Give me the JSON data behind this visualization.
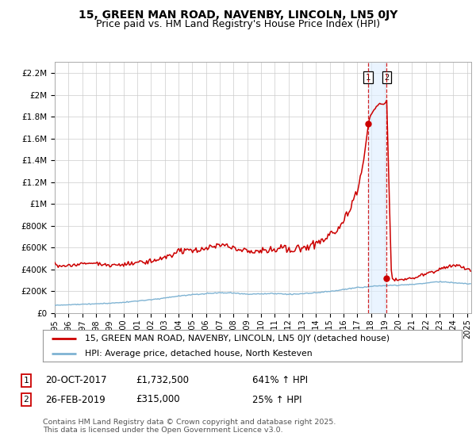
{
  "title": "15, GREEN MAN ROAD, NAVENBY, LINCOLN, LN5 0JY",
  "subtitle": "Price paid vs. HM Land Registry's House Price Index (HPI)",
  "title_fontsize": 10,
  "subtitle_fontsize": 9,
  "ylim": [
    0,
    2300000
  ],
  "yticks": [
    0,
    200000,
    400000,
    600000,
    800000,
    1000000,
    1200000,
    1400000,
    1600000,
    1800000,
    2000000,
    2200000
  ],
  "ytick_labels": [
    "£0",
    "£200K",
    "£400K",
    "£600K",
    "£800K",
    "£1M",
    "£1.2M",
    "£1.4M",
    "£1.6M",
    "£1.8M",
    "£2M",
    "£2.2M"
  ],
  "hpi_color": "#7fb3d3",
  "price_color": "#cc0000",
  "marker_color": "#cc0000",
  "sale1_x": 2017.8,
  "sale1_y": 1732500,
  "sale2_x": 2019.15,
  "sale2_y": 315000,
  "vline1_x": 2017.8,
  "vline2_x": 2019.15,
  "xlim_start": 1995,
  "xlim_end": 2025.3,
  "legend_label_red": "15, GREEN MAN ROAD, NAVENBY, LINCOLN, LN5 0JY (detached house)",
  "legend_label_blue": "HPI: Average price, detached house, North Kesteven",
  "note1_label": "1",
  "note1_date": "20-OCT-2017",
  "note1_price": "£1,732,500",
  "note1_hpi": "641% ↑ HPI",
  "note2_label": "2",
  "note2_date": "26-FEB-2019",
  "note2_price": "£315,000",
  "note2_hpi": "25% ↑ HPI",
  "footer": "Contains HM Land Registry data © Crown copyright and database right 2025.\nThis data is licensed under the Open Government Licence v3.0.",
  "background_color": "#ffffff",
  "grid_color": "#cccccc",
  "shade_color": "#ddeeff"
}
